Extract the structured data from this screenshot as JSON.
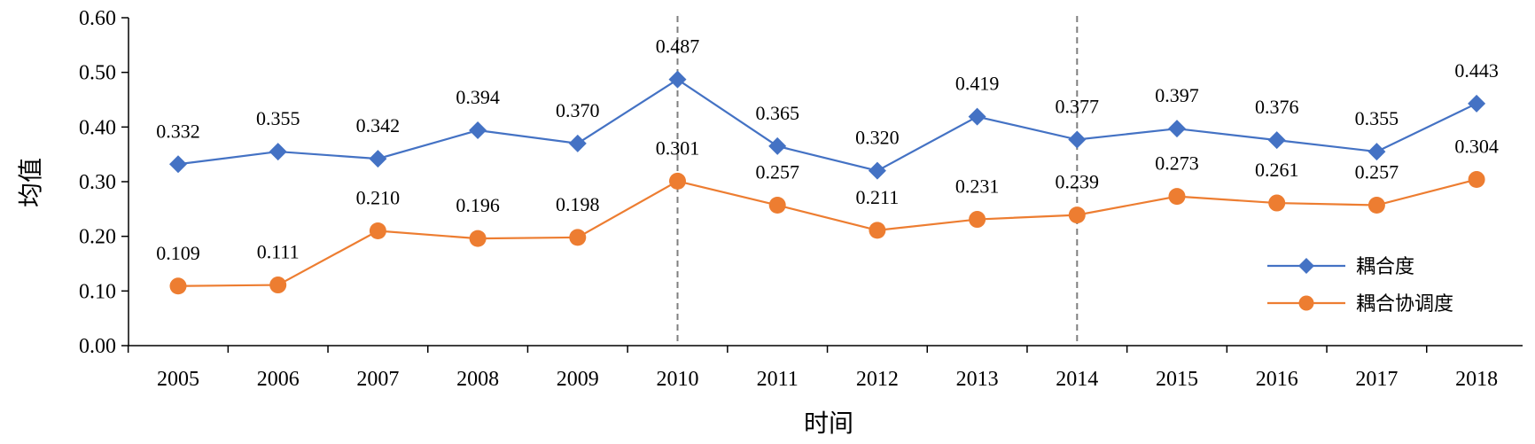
{
  "chart_data": {
    "type": "line",
    "title": "",
    "xlabel": "时间",
    "ylabel": "均值",
    "ylim": [
      0,
      0.6
    ],
    "y_ticks": [
      "0.00",
      "0.10",
      "0.20",
      "0.30",
      "0.40",
      "0.50",
      "0.60"
    ],
    "categories": [
      "2005",
      "2006",
      "2007",
      "2008",
      "2009",
      "2010",
      "2011",
      "2012",
      "2013",
      "2014",
      "2015",
      "2016",
      "2017",
      "2018"
    ],
    "series": [
      {
        "name": "耦合度",
        "color": "#4472C4",
        "marker": "diamond",
        "values": [
          0.332,
          0.355,
          0.342,
          0.394,
          0.37,
          0.487,
          0.365,
          0.32,
          0.419,
          0.377,
          0.397,
          0.376,
          0.355,
          0.443
        ],
        "labels": [
          "0.332",
          "0.355",
          "0.342",
          "0.394",
          "0.370",
          "0.487",
          "0.365",
          "0.320",
          "0.419",
          "0.377",
          "0.397",
          "0.376",
          "0.355",
          "0.443"
        ]
      },
      {
        "name": "耦合协调度",
        "color": "#ED7D31",
        "marker": "circle",
        "values": [
          0.109,
          0.111,
          0.21,
          0.196,
          0.198,
          0.301,
          0.257,
          0.211,
          0.231,
          0.239,
          0.273,
          0.261,
          0.257,
          0.304
        ],
        "labels": [
          "0.109",
          "0.111",
          "0.210",
          "0.196",
          "0.198",
          "0.301",
          "0.257",
          "0.211",
          "0.231",
          "0.239",
          "0.273",
          "0.261",
          "0.257",
          "0.304"
        ]
      }
    ],
    "reference_lines_at": [
      "2010",
      "2014"
    ],
    "grid": false,
    "legend_position": "right"
  }
}
